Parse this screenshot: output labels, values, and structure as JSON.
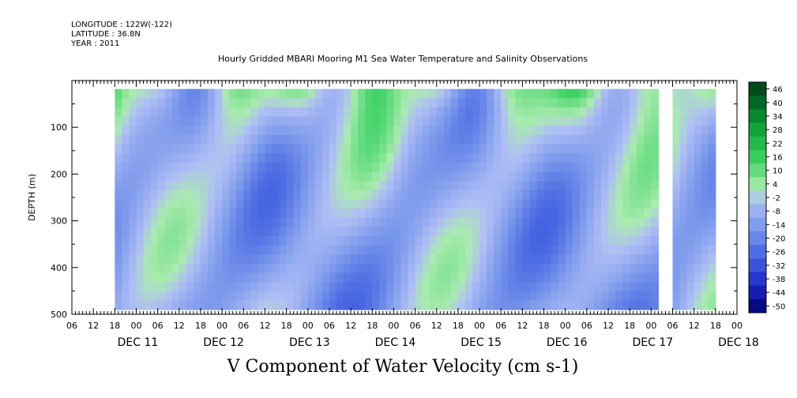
{
  "meta": {
    "longitude": "LONGITUDE : 122W(-122)",
    "latitude": "LATITUDE : 36.8N",
    "year": "YEAR : 2011"
  },
  "chart_data": {
    "type": "heatmap",
    "title": "Hourly Gridded MBARI Mooring M1 Sea Water Temperature and Salinity Observations",
    "xlabel": "V Component of Water Velocity (cm s-1)",
    "ylabel": "DEPTH (m)",
    "yticks": [
      100,
      200,
      300,
      400,
      500
    ],
    "ylim": [
      500,
      0
    ],
    "x_hour_ticks": [
      "06",
      "12",
      "18",
      "00",
      "06",
      "12",
      "18",
      "00",
      "06",
      "12",
      "18",
      "00",
      "06",
      "12",
      "18",
      "00",
      "06",
      "12",
      "18",
      "00",
      "06",
      "12",
      "18",
      "00",
      "06",
      "12",
      "18",
      "00",
      "06",
      "12",
      "18",
      "00"
    ],
    "x_day_labels": [
      "DEC 11",
      "DEC 12",
      "DEC 13",
      "DEC 14",
      "DEC 15",
      "DEC 16",
      "DEC 17",
      "DEC 18"
    ],
    "colorbar": {
      "levels": [
        "46",
        "40",
        "34",
        "28",
        "22",
        "16",
        "10",
        "4",
        "-2",
        "-8",
        "-14",
        "-20",
        "-26",
        "-32",
        "-38",
        "-44",
        "-50"
      ],
      "vmin": -50,
      "vmax": 50
    },
    "data_start_hour": 12,
    "data_end_hour": 180,
    "data_depth_range": [
      18,
      490
    ],
    "gap_hours": [
      165,
      167
    ]
  }
}
